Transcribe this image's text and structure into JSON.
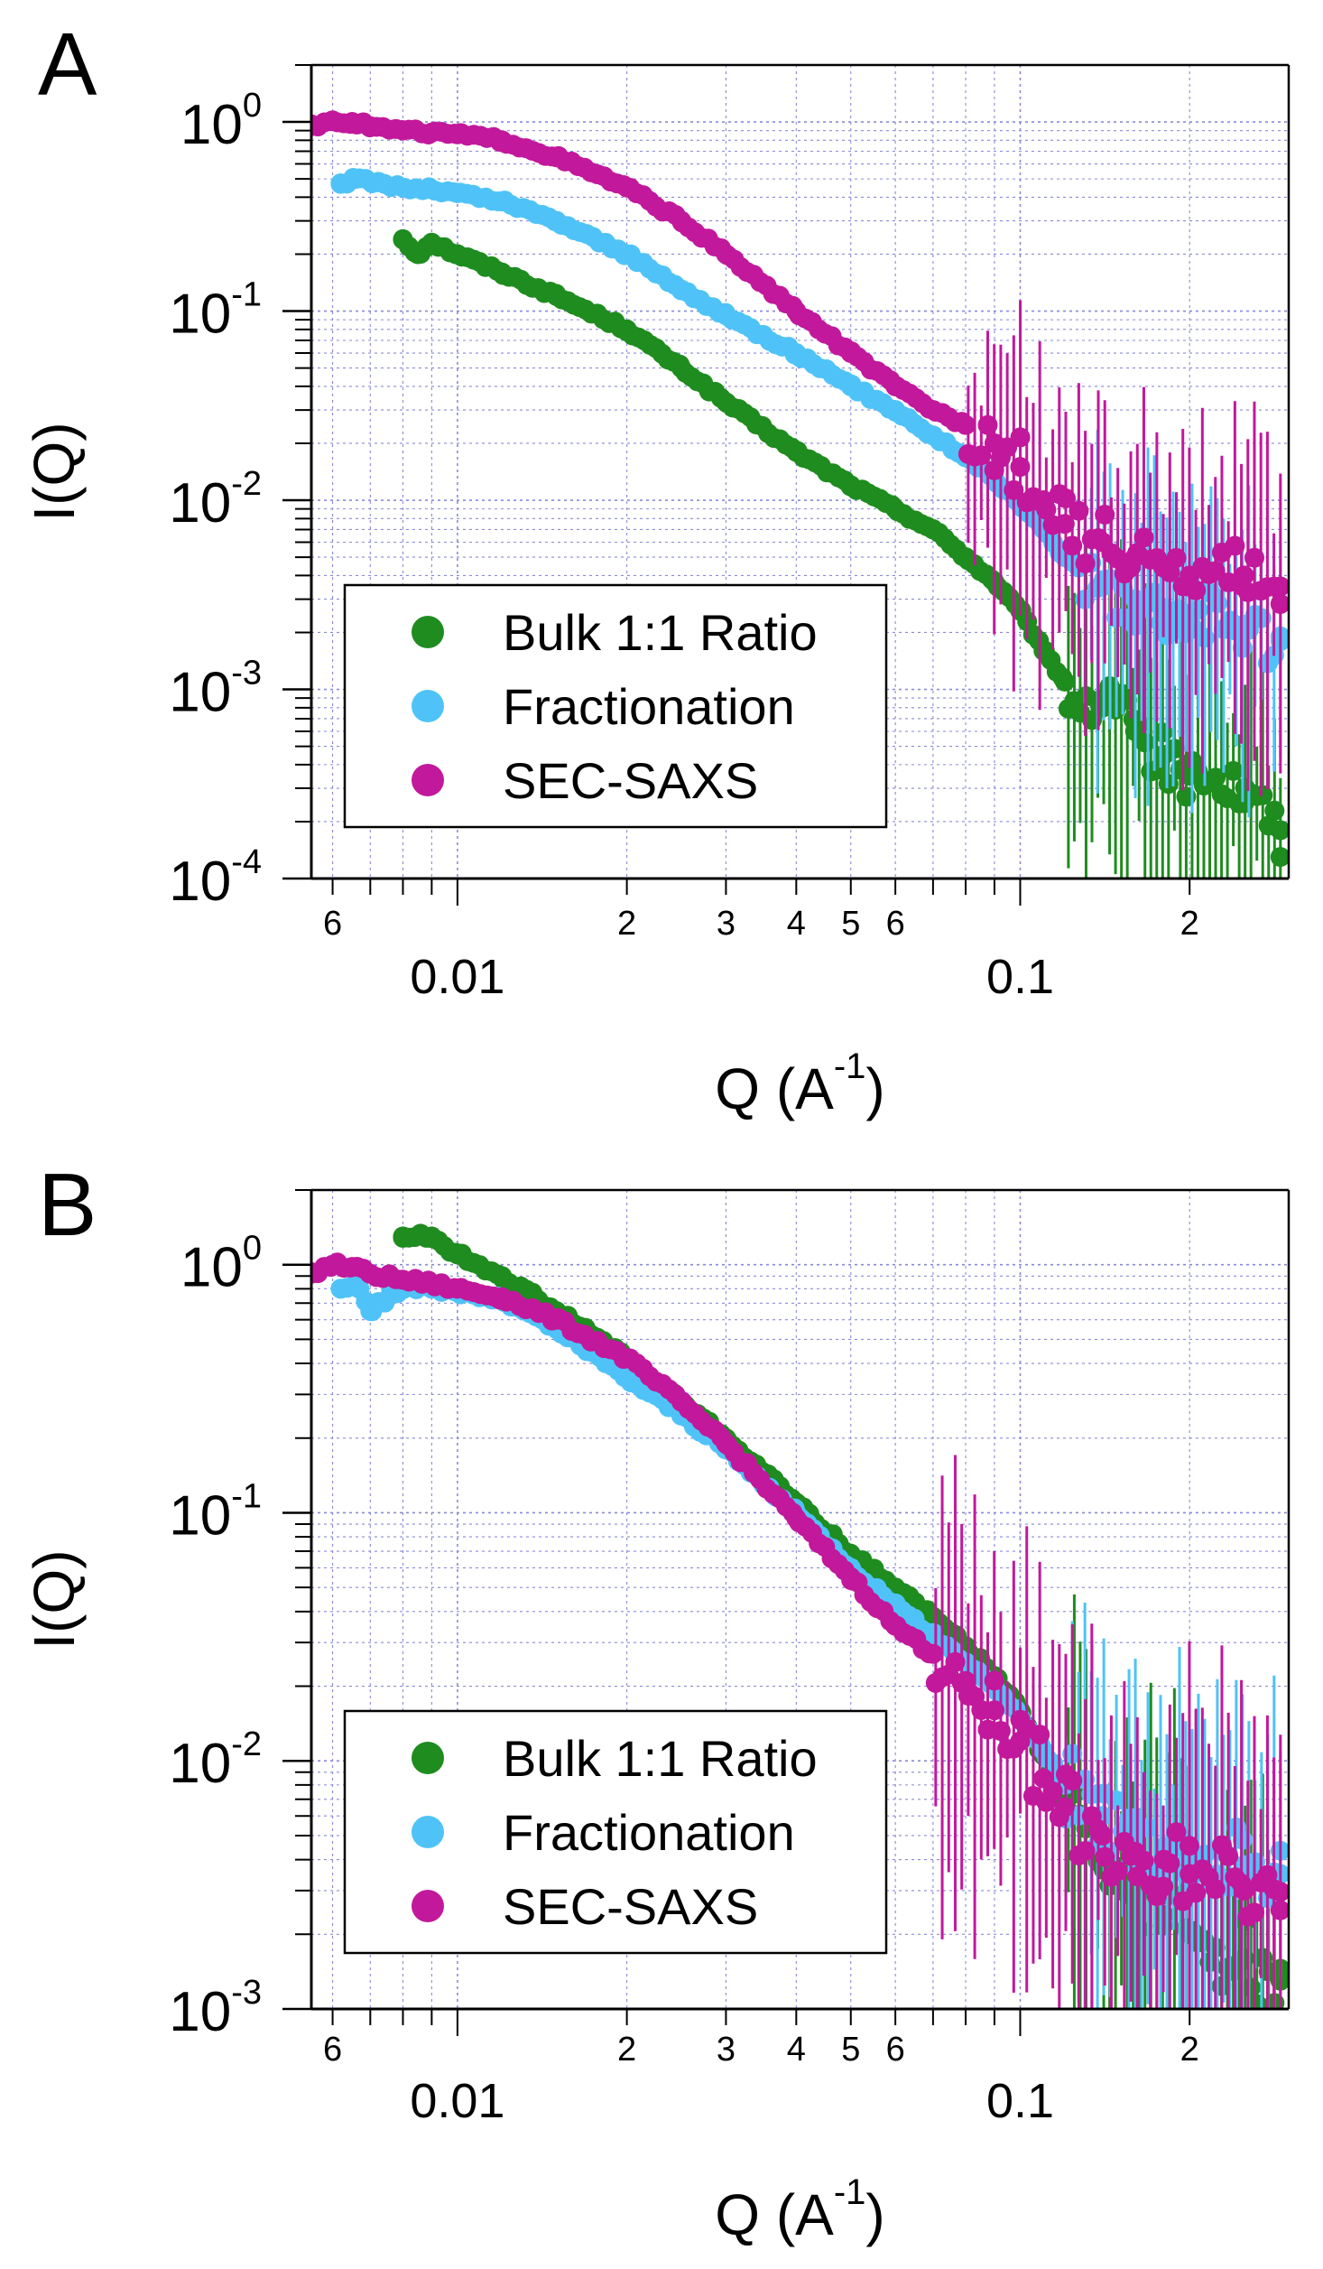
{
  "colors": {
    "bulk": "#1e8c1e",
    "fractionation": "#4fc3f7",
    "sec_saxs": "#c2189b",
    "grid": "#8a8ad8"
  },
  "chart_data": [
    {
      "panel_label": "A",
      "type": "scatter",
      "x_scale": "log",
      "y_scale": "log",
      "xlim": [
        0.0055,
        0.3
      ],
      "ylim": [
        0.0001,
        2.0
      ],
      "xlabel": "Q (A",
      "xlabel_sup": "-1",
      "xlabel_close": ")",
      "ylabel": "I(Q)",
      "grid": true,
      "legend_position": "bottom-left",
      "x_ticks_major": [
        {
          "value": 0.01,
          "label": "0.01"
        },
        {
          "value": 0.1,
          "label": "0.1"
        }
      ],
      "x_ticks_minor": [
        {
          "value": 0.006,
          "label": "6"
        },
        {
          "value": 0.02,
          "label": "2"
        },
        {
          "value": 0.03,
          "label": "3"
        },
        {
          "value": 0.04,
          "label": "4"
        },
        {
          "value": 0.05,
          "label": "5"
        },
        {
          "value": 0.06,
          "label": "6"
        },
        {
          "value": 0.2,
          "label": "2"
        }
      ],
      "y_ticks": [
        {
          "value": 1,
          "base": "10",
          "exp": "0"
        },
        {
          "value": 0.1,
          "base": "10",
          "exp": "-1"
        },
        {
          "value": 0.01,
          "base": "10",
          "exp": "-2"
        },
        {
          "value": 0.001,
          "base": "10",
          "exp": "-3"
        },
        {
          "value": 0.0001,
          "base": "10",
          "exp": "-4"
        }
      ],
      "series": [
        {
          "name": "Bulk 1:1 Ratio",
          "color_key": "bulk",
          "x": [
            0.008,
            0.0085,
            0.009,
            0.01,
            0.012,
            0.015,
            0.02,
            0.025,
            0.03,
            0.04,
            0.05,
            0.06,
            0.07,
            0.08,
            0.09,
            0.1,
            0.11,
            0.12,
            0.14,
            0.16,
            0.18,
            0.2,
            0.25,
            0.29
          ],
          "y": [
            0.24,
            0.2,
            0.23,
            0.2,
            0.16,
            0.12,
            0.08,
            0.05,
            0.033,
            0.018,
            0.012,
            0.009,
            0.007,
            0.005,
            0.0037,
            0.0026,
            0.0016,
            0.0011,
            0.0008,
            0.0006,
            0.00045,
            0.00035,
            0.00025,
            0.00018
          ],
          "err_from": 0.12
        },
        {
          "name": "Fractionation",
          "color_key": "fractionation",
          "x": [
            0.0062,
            0.0066,
            0.0072,
            0.008,
            0.009,
            0.01,
            0.012,
            0.015,
            0.02,
            0.025,
            0.03,
            0.04,
            0.05,
            0.06,
            0.07,
            0.08,
            0.09,
            0.1,
            0.11,
            0.12,
            0.14,
            0.16,
            0.18,
            0.2,
            0.25,
            0.29
          ],
          "y": [
            0.47,
            0.5,
            0.48,
            0.45,
            0.44,
            0.42,
            0.38,
            0.3,
            0.2,
            0.13,
            0.095,
            0.06,
            0.04,
            0.03,
            0.022,
            0.017,
            0.013,
            0.0095,
            0.007,
            0.005,
            0.0035,
            0.003,
            0.0027,
            0.0025,
            0.0022,
            0.0018
          ],
          "err_from": 0.13
        },
        {
          "name": "SEC-SAXS",
          "color_key": "sec_saxs",
          "x": [
            0.0055,
            0.006,
            0.0065,
            0.007,
            0.008,
            0.009,
            0.01,
            0.012,
            0.015,
            0.02,
            0.025,
            0.03,
            0.04,
            0.05,
            0.06,
            0.07,
            0.08,
            0.09,
            0.1,
            0.11,
            0.12,
            0.14,
            0.16,
            0.18,
            0.2,
            0.25,
            0.29
          ],
          "y": [
            0.95,
            1.02,
            1.0,
            0.95,
            0.9,
            0.88,
            0.86,
            0.8,
            0.65,
            0.45,
            0.3,
            0.2,
            0.1,
            0.06,
            0.04,
            0.03,
            0.025,
            0.02,
            0.015,
            0.01,
            0.0075,
            0.006,
            0.005,
            0.0045,
            0.004,
            0.004,
            0.0035
          ],
          "err_from": 0.08
        }
      ]
    },
    {
      "panel_label": "B",
      "type": "scatter",
      "x_scale": "log",
      "y_scale": "log",
      "xlim": [
        0.0055,
        0.3
      ],
      "ylim": [
        0.001,
        2.0
      ],
      "xlabel": "Q (A",
      "xlabel_sup": "-1",
      "xlabel_close": ")",
      "ylabel": "I(Q)",
      "grid": true,
      "legend_position": "bottom-left",
      "x_ticks_major": [
        {
          "value": 0.01,
          "label": "0.01"
        },
        {
          "value": 0.1,
          "label": "0.1"
        }
      ],
      "x_ticks_minor": [
        {
          "value": 0.006,
          "label": "6"
        },
        {
          "value": 0.02,
          "label": "2"
        },
        {
          "value": 0.03,
          "label": "3"
        },
        {
          "value": 0.04,
          "label": "4"
        },
        {
          "value": 0.05,
          "label": "5"
        },
        {
          "value": 0.06,
          "label": "6"
        },
        {
          "value": 0.2,
          "label": "2"
        }
      ],
      "y_ticks": [
        {
          "value": 1,
          "base": "10",
          "exp": "0"
        },
        {
          "value": 0.1,
          "base": "10",
          "exp": "-1"
        },
        {
          "value": 0.01,
          "base": "10",
          "exp": "-2"
        },
        {
          "value": 0.001,
          "base": "10",
          "exp": "-3"
        }
      ],
      "series": [
        {
          "name": "Bulk 1:1 Ratio",
          "color_key": "bulk",
          "x": [
            0.008,
            0.009,
            0.01,
            0.012,
            0.015,
            0.02,
            0.025,
            0.03,
            0.04,
            0.05,
            0.06,
            0.07,
            0.08,
            0.09,
            0.1,
            0.11,
            0.12,
            0.14,
            0.16,
            0.18,
            0.2,
            0.25,
            0.29
          ],
          "y": [
            1.3,
            1.3,
            1.1,
            0.9,
            0.65,
            0.42,
            0.28,
            0.2,
            0.11,
            0.068,
            0.05,
            0.038,
            0.029,
            0.022,
            0.016,
            0.0105,
            0.007,
            0.0045,
            0.003,
            0.0024,
            0.002,
            0.0016,
            0.0013
          ],
          "err_from": 0.12
        },
        {
          "name": "Fractionation",
          "color_key": "fractionation",
          "x": [
            0.0062,
            0.0066,
            0.007,
            0.008,
            0.009,
            0.01,
            0.012,
            0.015,
            0.02,
            0.025,
            0.03,
            0.04,
            0.05,
            0.06,
            0.07,
            0.08,
            0.09,
            0.1,
            0.11,
            0.12,
            0.14,
            0.16,
            0.18,
            0.2,
            0.25,
            0.29
          ],
          "y": [
            0.8,
            0.85,
            0.65,
            0.82,
            0.8,
            0.78,
            0.72,
            0.55,
            0.35,
            0.25,
            0.18,
            0.1,
            0.06,
            0.042,
            0.032,
            0.025,
            0.02,
            0.015,
            0.011,
            0.008,
            0.006,
            0.005,
            0.0045,
            0.004,
            0.0038,
            0.0035
          ],
          "err_from": 0.12
        },
        {
          "name": "SEC-SAXS",
          "color_key": "sec_saxs",
          "x": [
            0.0055,
            0.006,
            0.0065,
            0.007,
            0.008,
            0.009,
            0.01,
            0.012,
            0.015,
            0.02,
            0.025,
            0.03,
            0.04,
            0.05,
            0.06,
            0.07,
            0.08,
            0.09,
            0.1,
            0.11,
            0.12,
            0.14,
            0.16,
            0.18,
            0.2,
            0.25,
            0.29
          ],
          "y": [
            0.92,
            1.0,
            0.98,
            0.92,
            0.87,
            0.84,
            0.8,
            0.74,
            0.6,
            0.42,
            0.28,
            0.19,
            0.095,
            0.055,
            0.035,
            0.027,
            0.021,
            0.016,
            0.012,
            0.0085,
            0.0065,
            0.005,
            0.0043,
            0.004,
            0.0035,
            0.003,
            0.0025
          ],
          "err_from": 0.07
        }
      ]
    }
  ]
}
